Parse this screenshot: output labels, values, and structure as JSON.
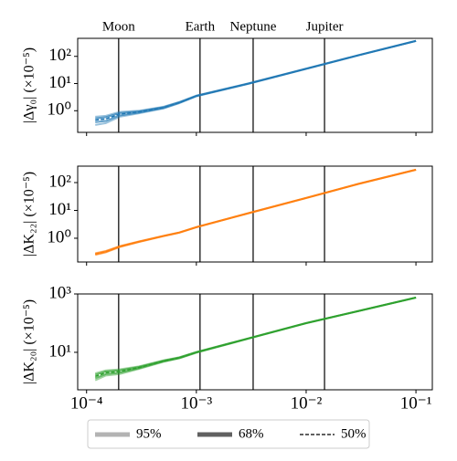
{
  "markers": [
    {
      "label": "Moon",
      "x": 0.000196
    },
    {
      "label": "Earth",
      "x": 0.00108
    },
    {
      "label": "Neptune",
      "x": 0.00329
    },
    {
      "label": "Jupiter",
      "x": 0.0147
    }
  ],
  "legend": [
    {
      "label": "95%",
      "color": "#b3b3b3",
      "style": "solid"
    },
    {
      "label": "68%",
      "color": "#606060",
      "style": "solid"
    },
    {
      "label": "50%",
      "color": "#000000",
      "style": "dashed"
    }
  ],
  "chart_data": [
    {
      "type": "line",
      "ylabel": "|Δγ₀| (×10⁻⁵)",
      "color": "#1f77b4",
      "xscale": "log",
      "yscale": "log",
      "xlim": [
        8.3e-05,
        0.141
      ],
      "ylim": [
        0.16,
        460
      ],
      "xticks": [
        0.0001,
        0.001,
        0.01,
        0.1
      ],
      "yticks": [
        {
          "value": 1,
          "label": "10⁰"
        },
        {
          "value": 10,
          "label": "10¹"
        },
        {
          "value": 100,
          "label": "10²"
        }
      ],
      "x": [
        0.00012,
        0.00015,
        0.0002,
        0.0003,
        0.0005,
        0.0007,
        0.001,
        0.003,
        0.01,
        0.03,
        0.1
      ],
      "values": [
        0.45,
        0.5,
        0.75,
        0.9,
        1.3,
        2,
        3.5,
        10,
        35,
        110,
        370
      ],
      "lower_95": [
        0.3,
        0.35,
        0.6,
        0.8,
        1.2,
        1.9,
        3.4,
        9.8,
        34.5,
        109,
        368
      ],
      "upper_95": [
        0.6,
        0.65,
        0.9,
        1.0,
        1.4,
        2.1,
        3.6,
        10.2,
        35.5,
        111,
        372
      ],
      "lower_68": [
        0.38,
        0.42,
        0.67,
        0.85,
        1.25,
        1.95,
        3.45,
        9.9,
        34.7,
        109.5,
        369
      ],
      "upper_68": [
        0.52,
        0.58,
        0.82,
        0.95,
        1.35,
        2.05,
        3.55,
        10.1,
        35.3,
        110.5,
        371
      ]
    },
    {
      "type": "line",
      "ylabel": "|ΔK₂₂| (×10⁻⁵)",
      "color": "#ff7f0e",
      "xscale": "log",
      "yscale": "log",
      "xlim": [
        8.3e-05,
        0.141
      ],
      "ylim": [
        0.14,
        390
      ],
      "xticks": [
        0.0001,
        0.001,
        0.01,
        0.1
      ],
      "yticks": [
        {
          "value": 1,
          "label": "10⁰"
        },
        {
          "value": 10,
          "label": "10¹"
        },
        {
          "value": 100,
          "label": "10²"
        }
      ],
      "x": [
        0.00012,
        0.00015,
        0.0002,
        0.0003,
        0.0005,
        0.0007,
        0.001,
        0.003,
        0.01,
        0.03,
        0.1
      ],
      "values": [
        0.27,
        0.33,
        0.5,
        0.75,
        1.2,
        1.6,
        2.5,
        8,
        28,
        90,
        290
      ],
      "lower_95": [
        0.25,
        0.31,
        0.48,
        0.73,
        1.18,
        1.58,
        2.47,
        7.9,
        27.7,
        89,
        288
      ],
      "upper_95": [
        0.29,
        0.35,
        0.52,
        0.77,
        1.22,
        1.62,
        2.53,
        8.1,
        28.3,
        91,
        292
      ],
      "lower_68": [
        0.26,
        0.32,
        0.49,
        0.74,
        1.19,
        1.59,
        2.49,
        7.95,
        27.9,
        89.5,
        289
      ],
      "upper_68": [
        0.28,
        0.34,
        0.51,
        0.76,
        1.21,
        1.61,
        2.51,
        8.05,
        28.1,
        90.5,
        291
      ]
    },
    {
      "type": "line",
      "ylabel": "|ΔK₂₀| (×10⁻⁵)",
      "color": "#2ca02c",
      "xscale": "log",
      "yscale": "log",
      "xlim": [
        8.3e-05,
        0.141
      ],
      "ylim": [
        0.52,
        1000
      ],
      "xticks": [
        {
          "value": 0.0001,
          "label": "10⁻⁴"
        },
        {
          "value": 0.001,
          "label": "10⁻³"
        },
        {
          "value": 0.01,
          "label": "10⁻²"
        },
        {
          "value": 0.1,
          "label": "10⁻¹"
        }
      ],
      "yticks": [
        {
          "value": 10,
          "label": "10¹"
        },
        {
          "value": 1000,
          "label": "10³"
        }
      ],
      "x": [
        0.00012,
        0.00015,
        0.0002,
        0.0003,
        0.0005,
        0.0007,
        0.001,
        0.003,
        0.01,
        0.03,
        0.1
      ],
      "values": [
        1.5,
        2,
        2.2,
        3,
        5,
        6.5,
        10,
        30,
        100,
        260,
        750
      ],
      "lower_95": [
        1.1,
        1.6,
        1.8,
        2.7,
        4.7,
        6.2,
        9.7,
        29.5,
        99,
        258,
        745
      ],
      "upper_95": [
        1.9,
        2.4,
        2.6,
        3.3,
        5.3,
        6.8,
        10.3,
        30.5,
        101,
        262,
        755
      ],
      "lower_68": [
        1.3,
        1.8,
        2.0,
        2.85,
        4.85,
        6.35,
        9.85,
        29.7,
        99.5,
        259,
        748
      ],
      "upper_68": [
        1.7,
        2.2,
        2.4,
        3.15,
        5.15,
        6.65,
        10.15,
        30.3,
        100.5,
        261,
        752
      ]
    }
  ]
}
